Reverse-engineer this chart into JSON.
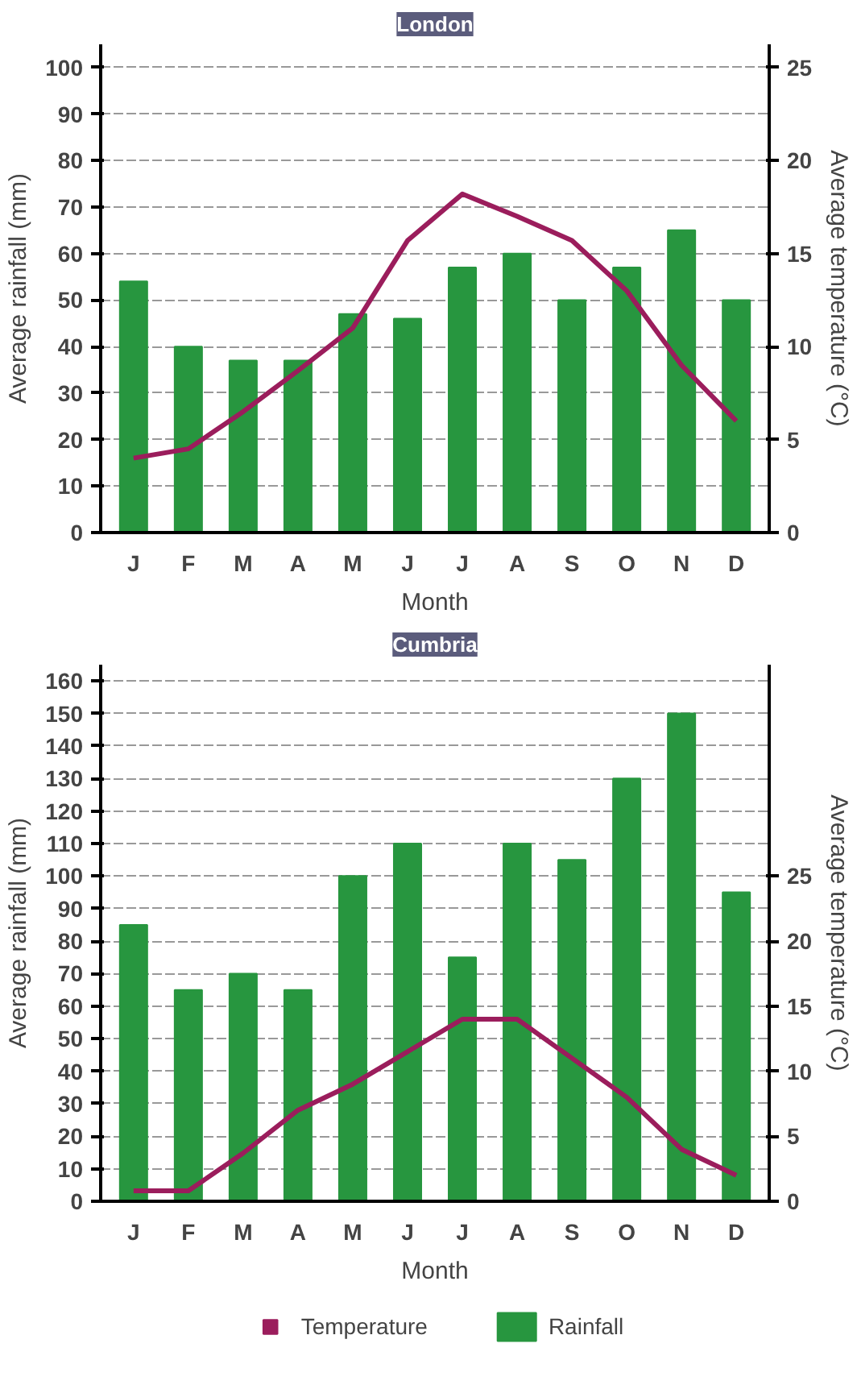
{
  "chart_data": [
    {
      "type": "bar",
      "title": "London",
      "xlabel": "Month",
      "ylabel": "Average rainfall (mm)",
      "y2label": "Average temperature (°C)",
      "categories": [
        "J",
        "F",
        "M",
        "A",
        "M",
        "J",
        "J",
        "A",
        "S",
        "O",
        "N",
        "D"
      ],
      "series": [
        {
          "color": "#27963f",
          "values": [
            54,
            40,
            37,
            37,
            47,
            46,
            57,
            60,
            50,
            57,
            65,
            50
          ]
        },
        {
          "type": "line",
          "axis": "y2",
          "color": "#9b1d5c",
          "values": [
            4,
            4.5,
            6.5,
            8.7,
            11,
            15.7,
            18.2,
            17,
            15.7,
            13,
            9,
            6
          ]
        }
      ],
      "ylim": [
        0,
        105
      ],
      "yticks": [
        0,
        10,
        20,
        30,
        40,
        50,
        60,
        70,
        80,
        90,
        100
      ],
      "y2lim": [
        0,
        26.25
      ],
      "y2ticks": [
        0,
        5,
        10,
        15,
        20,
        25
      ],
      "grid": "y"
    },
    {
      "type": "bar",
      "title": "Cumbria",
      "xlabel": "Month",
      "ylabel": "Average rainfall (mm)",
      "y2label": "Average temperature (°C)",
      "categories": [
        "J",
        "F",
        "M",
        "A",
        "M",
        "J",
        "J",
        "A",
        "S",
        "O",
        "N",
        "D"
      ],
      "series": [
        {
          "name": "Rainfall",
          "color": "#27963f",
          "values": [
            85,
            65,
            70,
            65,
            100,
            110,
            75,
            110,
            105,
            130,
            150,
            95
          ]
        },
        {
          "type": "line",
          "name": "Temperature",
          "axis": "y2",
          "color": "#9b1d5c",
          "values": [
            0.8,
            0.8,
            3.7,
            7,
            9,
            11.5,
            14,
            14,
            11,
            8,
            4,
            2
          ]
        }
      ],
      "ylim": [
        0,
        165
      ],
      "yticks": [
        0,
        10,
        20,
        30,
        40,
        50,
        60,
        70,
        80,
        90,
        100,
        110,
        120,
        130,
        140,
        150,
        160
      ],
      "y2lim": [
        0,
        41.25
      ],
      "y2ticks": [
        0,
        5,
        10,
        15,
        20,
        25
      ],
      "grid": "y",
      "legend": "bottom"
    }
  ]
}
